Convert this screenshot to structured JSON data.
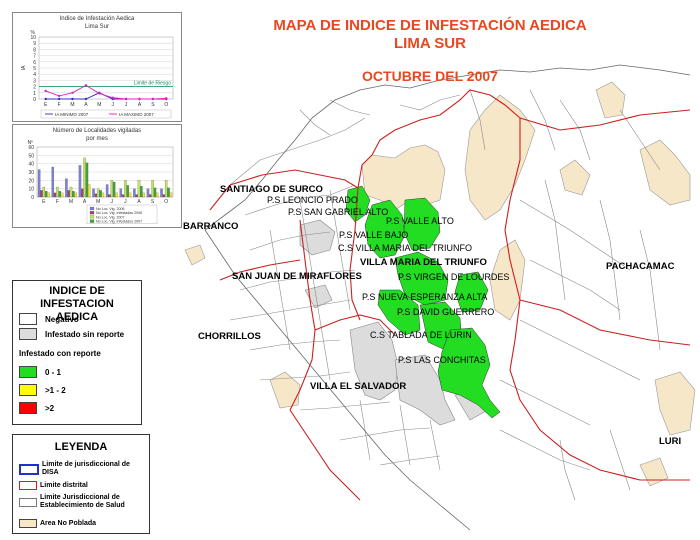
{
  "title": {
    "line1": "MAPA DE INDICE DE INFESTACIÓN AEDICA",
    "line2": "LIMA SUR",
    "line3": "OCTUBRE DEL 2007"
  },
  "colors": {
    "title": "#e8481e",
    "green": "#22dd22",
    "yellow": "#ffff00",
    "red": "#ff0000",
    "no_poblada": "#f7e7c9",
    "infestado_sin_reporte": "#dcdcdc",
    "limite_distrital": "#cc2020",
    "limite_disa": "#2030d0"
  },
  "chart_data": [
    {
      "type": "line",
      "title": "Indice de Infestación Aedica",
      "subtitle": "Lima Sur",
      "ylabel": "IA",
      "y_unit_label": "%",
      "categories": [
        "E",
        "F",
        "M",
        "A",
        "M",
        "J",
        "J",
        "A",
        "S",
        "O"
      ],
      "ylim": [
        0,
        10
      ],
      "yticks": [
        0,
        1,
        2,
        3,
        4,
        5,
        6,
        7,
        8,
        9,
        10
      ],
      "threshold": {
        "label": "Limite de Riesgo",
        "value": 2
      },
      "series": [
        {
          "name": "IA MINIMO 2007",
          "color": "#3030c0",
          "values": [
            0,
            0,
            0,
            0,
            1,
            0,
            0,
            0,
            0,
            0
          ]
        },
        {
          "name": "IA MAXIMO 2007",
          "color": "#e020c0",
          "values": [
            1.3,
            0.5,
            1.0,
            2.2,
            0.9,
            0.2,
            0,
            0,
            0,
            0.1
          ]
        }
      ]
    },
    {
      "type": "bar",
      "title": "Número de Localidades vigiladas",
      "subtitle": "por mes",
      "y_unit_label": "Nº",
      "categories": [
        "E",
        "F",
        "M",
        "A",
        "M",
        "J",
        "J",
        "A",
        "S",
        "O"
      ],
      "ylim": [
        0,
        60
      ],
      "yticks": [
        0,
        10,
        20,
        30,
        40,
        50,
        60
      ],
      "series": [
        {
          "name": "No Loc. Vig. 2006",
          "color": "#8080d0",
          "values": [
            33,
            36,
            22,
            38,
            10,
            15,
            10,
            10,
            10,
            10
          ]
        },
        {
          "name": "No Loc. Vig. Infestadas 2006",
          "color": "#a04080",
          "values": [
            8,
            5,
            8,
            10,
            4,
            3,
            3,
            3,
            3,
            3
          ]
        },
        {
          "name": "No Loc. Vig. 2007",
          "color": "#c0e060",
          "values": [
            12,
            12,
            12,
            47,
            10,
            20,
            20,
            20,
            20,
            20
          ]
        },
        {
          "name": "No Loc. Vig. Infestados 2007",
          "color": "#40a040",
          "values": [
            7,
            7,
            7,
            41,
            8,
            18,
            14,
            13,
            11,
            11
          ]
        },
        {
          "name": "",
          "color": "#f0e040",
          "values": [
            5,
            5,
            5,
            15,
            5,
            5,
            5,
            5,
            5,
            5
          ]
        }
      ]
    }
  ],
  "legend_index": {
    "title_line1": "INDICE DE INFESTACION",
    "title_line2": "AEDICA",
    "negativo": "Negativo",
    "sin_reporte": "Infestado sin reporte",
    "con_reporte": "Infestado con reporte",
    "r1": "0 - 1",
    "r2": ">1 - 2",
    "r3": ">2"
  },
  "legend_main": {
    "title": "LEYENDA",
    "disa": "Limite de jurisdiccional de DISA",
    "distrital": "Limite distrital",
    "establecimiento": "Limite Jurisdiccional de Establecimiento de Salud",
    "no_poblada": "Area No Poblada"
  },
  "map_labels": {
    "santiago": "SANTIAGO DE SURCO",
    "barranco": "BARRANCO",
    "sjm": "SAN JUAN DE MIRAFLORES",
    "chorrillos": "CHORRILLOS",
    "ves": "VILLA EL SALVADOR",
    "vmt": "VILLA MARIA DEL TRIUNFO",
    "pachacamac": "PACHACAMAC",
    "lurin": "LURI",
    "ps_leoncio": "P.S LEONCIO PRADO",
    "ps_san_gabriel": "P.S SAN GABRIEL ALTO",
    "ps_valle_alto": "P.S VALLE ALTO",
    "ps_valle_bajo": "P.S VALLE BAJO",
    "cs_vmt": "C.S VILLA MARIA DEL TRIUNFO",
    "ps_virgen": "P.S VIRGEN DE LOURDES",
    "ps_nueva": "P.S NUEVA ESPERANZA ALTA",
    "ps_david": "P.S DAVID GUERRERO",
    "cs_tablada": "C.S TABLADA DE LURIN",
    "ps_conchitas": "P.S LAS CONCHITAS"
  }
}
